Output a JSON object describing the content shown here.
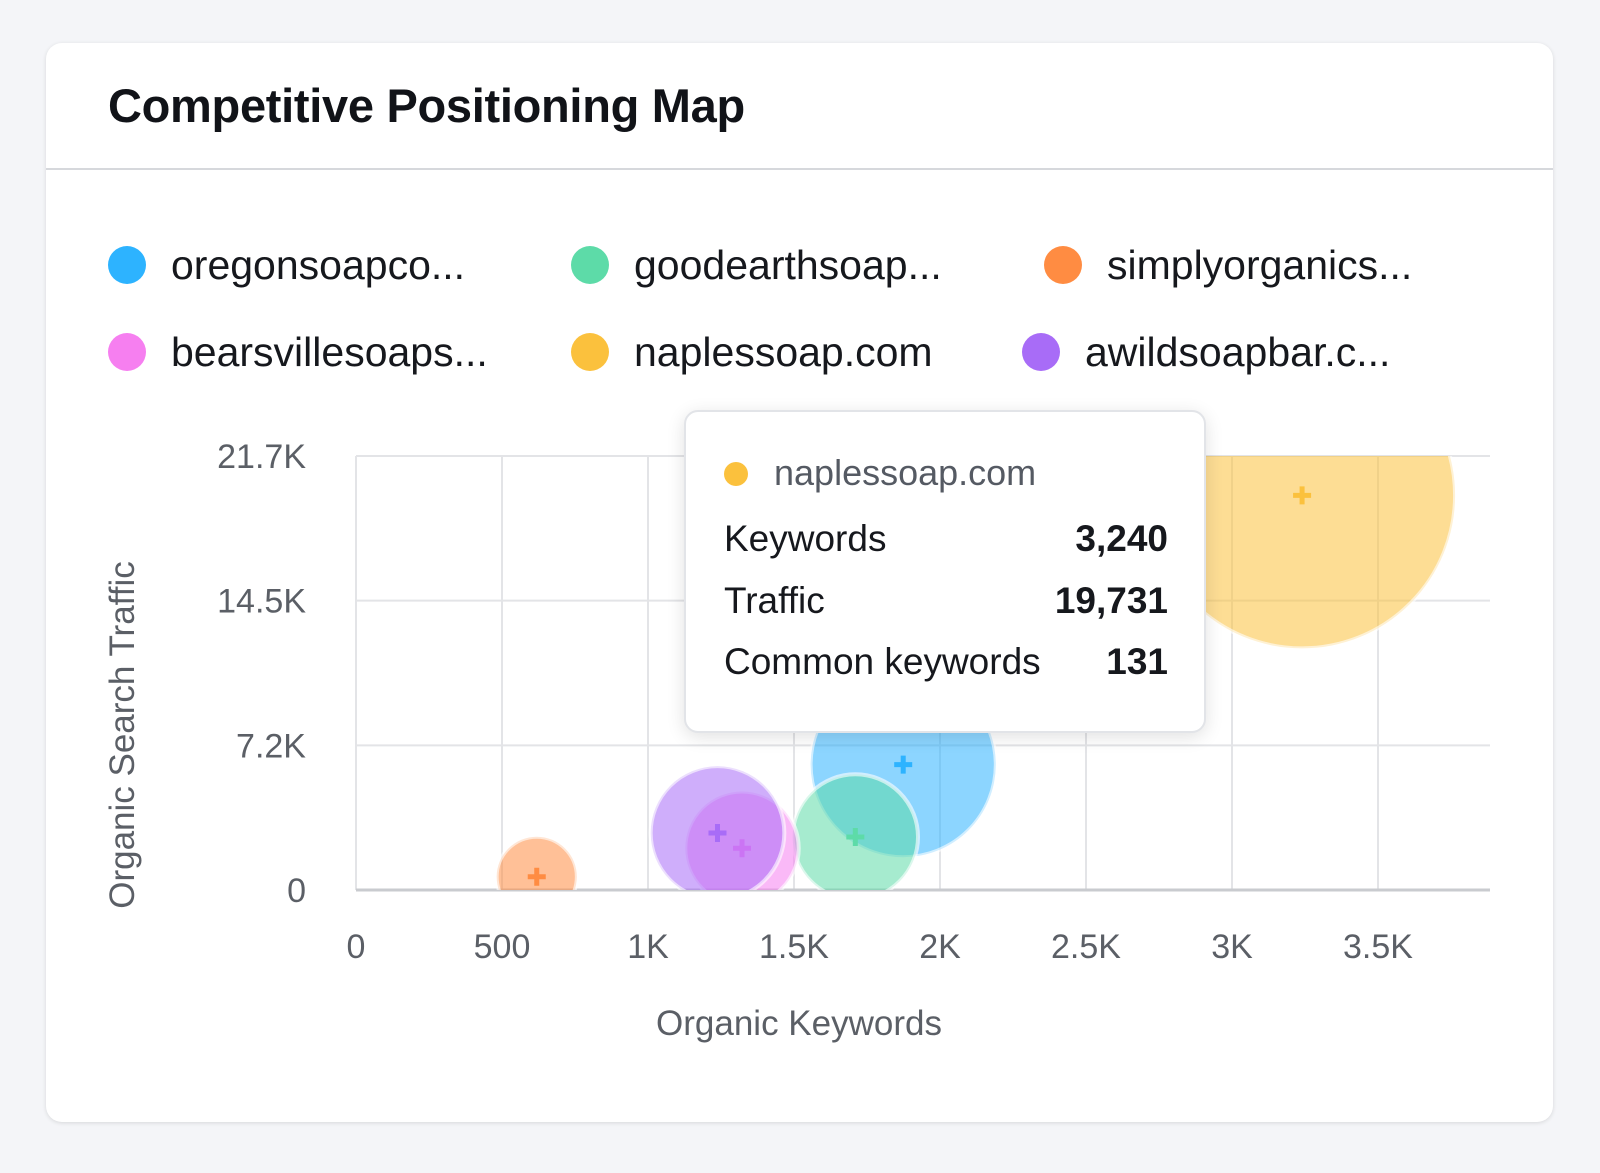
{
  "card": {
    "title": "Competitive Positioning Map"
  },
  "tooltip": {
    "domain": "naplessoap.com",
    "color": "#fbc13d",
    "rows": [
      {
        "label": "Keywords",
        "value": "3,240"
      },
      {
        "label": "Traffic",
        "value": "19,731"
      },
      {
        "label": "Common keywords",
        "value": "131"
      }
    ]
  },
  "chart_data": {
    "type": "bubble",
    "xlabel": "Organic Keywords",
    "ylabel": "Organic Search Traffic",
    "xlim": [
      0,
      3900
    ],
    "ylim": [
      0,
      21700
    ],
    "x_ticks": [
      0,
      500,
      1000,
      1500,
      2000,
      2500,
      3000,
      3500
    ],
    "x_tick_labels": [
      "0",
      "500",
      "1K",
      "1.5K",
      "2K",
      "2.5K",
      "3K",
      "3.5K"
    ],
    "y_ticks": [
      0,
      7233,
      14467,
      21700
    ],
    "y_tick_labels": [
      "0",
      "7.2K",
      "14.5K",
      "21.7K"
    ],
    "grid": true,
    "legend_position": "top",
    "size_encoding": "Common keywords",
    "series": [
      {
        "name": "oregonsoapco...",
        "color": "#2db3ff",
        "x": 1874,
        "y": 6270,
        "size": 48
      },
      {
        "name": "goodearthsoap...",
        "color": "#5ddba8",
        "x": 1710,
        "y": 2650,
        "size": 22
      },
      {
        "name": "simplyorganics...",
        "color": "#ff8c42",
        "x": 619,
        "y": 660,
        "size": 9
      },
      {
        "name": "bearsvillesoaps...",
        "color": "#f67ff0",
        "x": 1322,
        "y": 2090,
        "size": 18
      },
      {
        "name": "naplessoap.com",
        "color": "#fbc13d",
        "x": 3240,
        "y": 19731,
        "size": 131
      },
      {
        "name": "awildsoapbar.c...",
        "color": "#a86cf7",
        "x": 1238,
        "y": 2850,
        "size": 25
      }
    ]
  }
}
